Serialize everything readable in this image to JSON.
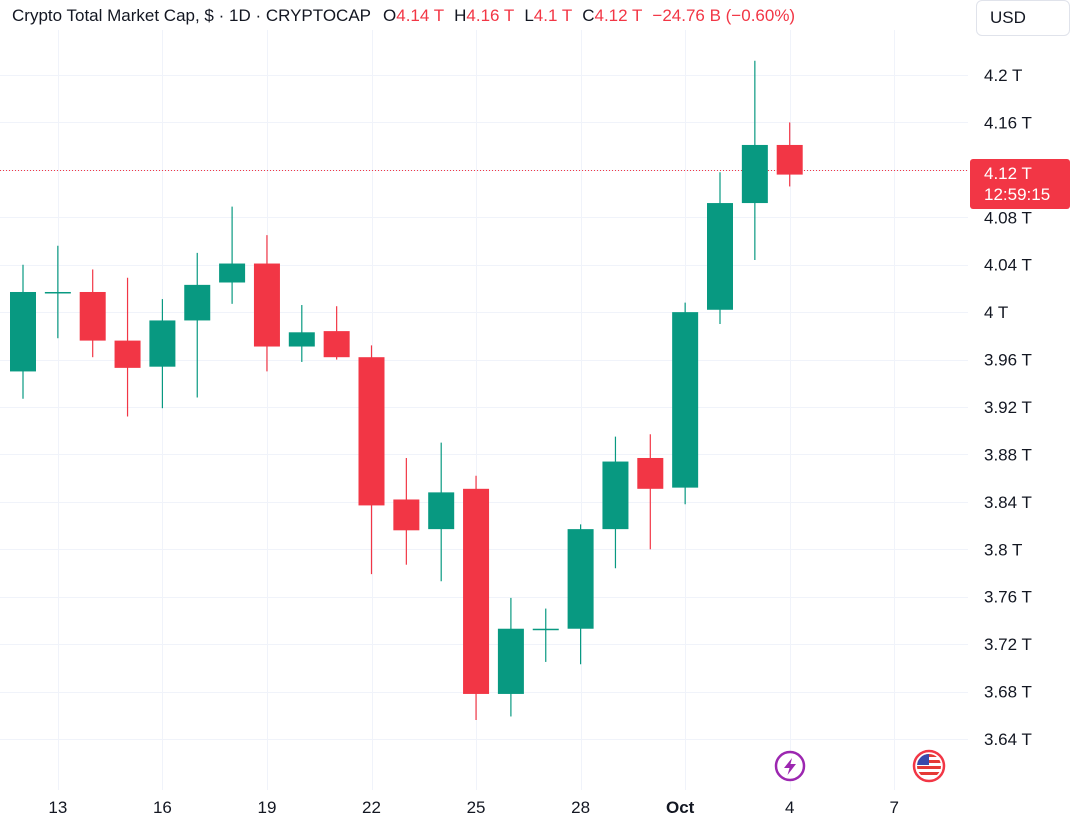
{
  "legend": {
    "title": "Crypto Total Market Cap, $ · 1D · CRYPTOCAP",
    "open_label": "O",
    "open_value": "4.14 T",
    "high_label": "H",
    "high_value": "4.16 T",
    "low_label": "L",
    "low_value": "4.1 T",
    "close_label": "C",
    "close_value": "4.12 T",
    "change": "−24.76 B (−0.60%)"
  },
  "currency_button": {
    "label": "USD"
  },
  "last_price": {
    "value": "4.12 T",
    "countdown": "12:59:15"
  },
  "colors": {
    "up": "#089981",
    "down": "#f23645",
    "grid": "#f0f3fa",
    "text": "#131722"
  },
  "icons": {
    "lightning": "lightning-bolt-icon",
    "flag": "us-flag-icon"
  },
  "chart_data": {
    "type": "candlestick",
    "title": "Crypto Total Market Cap, $ · 1D · CRYPTOCAP",
    "y_unit": "T",
    "ylim": [
      3.61,
      4.23
    ],
    "y_ticks": [
      "4.2 T",
      "4.16 T",
      "4.12 T",
      "4.08 T",
      "4.04 T",
      "4 T",
      "3.96 T",
      "3.92 T",
      "3.88 T",
      "3.84 T",
      "3.8 T",
      "3.76 T",
      "3.72 T",
      "3.68 T",
      "3.64 T"
    ],
    "y_tick_values": [
      4.2,
      4.16,
      4.12,
      4.08,
      4.04,
      4.0,
      3.96,
      3.92,
      3.88,
      3.84,
      3.8,
      3.76,
      3.72,
      3.68,
      3.64
    ],
    "x_ticks": [
      "13",
      "16",
      "19",
      "22",
      "25",
      "28",
      "Oct",
      "4",
      "7"
    ],
    "x_tick_index": [
      1,
      4,
      7,
      10,
      13,
      16,
      19,
      22,
      25
    ],
    "bold_x_tick": "Oct",
    "grid": true,
    "last_price_line": 4.12,
    "candles": [
      {
        "date": "Sep 12",
        "open": 3.95,
        "high": 4.04,
        "low": 3.927,
        "close": 4.017
      },
      {
        "date": "Sep 13",
        "open": 4.017,
        "high": 4.056,
        "low": 3.978,
        "close": 4.017
      },
      {
        "date": "Sep 14",
        "open": 4.017,
        "high": 4.036,
        "low": 3.962,
        "close": 3.976
      },
      {
        "date": "Sep 15",
        "open": 3.976,
        "high": 4.029,
        "low": 3.912,
        "close": 3.953
      },
      {
        "date": "Sep 16",
        "open": 3.954,
        "high": 4.011,
        "low": 3.919,
        "close": 3.993
      },
      {
        "date": "Sep 17",
        "open": 3.993,
        "high": 4.05,
        "low": 3.928,
        "close": 4.023
      },
      {
        "date": "Sep 18",
        "open": 4.025,
        "high": 4.089,
        "low": 4.007,
        "close": 4.041
      },
      {
        "date": "Sep 19",
        "open": 4.041,
        "high": 4.065,
        "low": 3.95,
        "close": 3.971
      },
      {
        "date": "Sep 20",
        "open": 3.971,
        "high": 4.006,
        "low": 3.958,
        "close": 3.983
      },
      {
        "date": "Sep 21",
        "open": 3.984,
        "high": 4.005,
        "low": 3.96,
        "close": 3.962
      },
      {
        "date": "Sep 22",
        "open": 3.962,
        "high": 3.972,
        "low": 3.779,
        "close": 3.837
      },
      {
        "date": "Sep 23",
        "open": 3.842,
        "high": 3.877,
        "low": 3.787,
        "close": 3.816
      },
      {
        "date": "Sep 24",
        "open": 3.817,
        "high": 3.89,
        "low": 3.773,
        "close": 3.848
      },
      {
        "date": "Sep 25",
        "open": 3.851,
        "high": 3.862,
        "low": 3.656,
        "close": 3.678
      },
      {
        "date": "Sep 26",
        "open": 3.678,
        "high": 3.759,
        "low": 3.659,
        "close": 3.733
      },
      {
        "date": "Sep 27",
        "open": 3.733,
        "high": 3.75,
        "low": 3.705,
        "close": 3.733
      },
      {
        "date": "Sep 28",
        "open": 3.733,
        "high": 3.821,
        "low": 3.703,
        "close": 3.817
      },
      {
        "date": "Sep 29",
        "open": 3.817,
        "high": 3.895,
        "low": 3.784,
        "close": 3.874
      },
      {
        "date": "Sep 30",
        "open": 3.877,
        "high": 3.897,
        "low": 3.8,
        "close": 3.851
      },
      {
        "date": "Oct 1",
        "open": 3.852,
        "high": 4.008,
        "low": 3.838,
        "close": 4.0
      },
      {
        "date": "Oct 2",
        "open": 4.002,
        "high": 4.118,
        "low": 3.99,
        "close": 4.092
      },
      {
        "date": "Oct 3",
        "open": 4.092,
        "high": 4.212,
        "low": 4.044,
        "close": 4.141
      },
      {
        "date": "Oct 4",
        "open": 4.141,
        "high": 4.16,
        "low": 4.106,
        "close": 4.116
      }
    ]
  }
}
